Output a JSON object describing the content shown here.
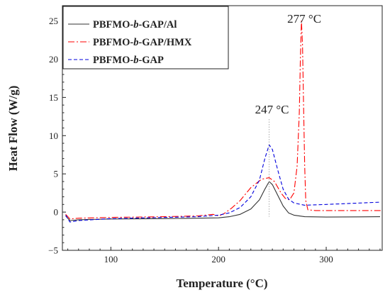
{
  "chart_data": {
    "type": "line",
    "title": "",
    "xlabel": "Temperature (°C)",
    "ylabel": "Heat Flow (W/g)",
    "xlim": [
      55,
      352
    ],
    "ylim": [
      -5,
      27
    ],
    "x_ticks": [
      100,
      200,
      300
    ],
    "y_ticks": [
      -5,
      0,
      5,
      10,
      15,
      20,
      25
    ],
    "grid": false,
    "legend": "top-left",
    "series": [
      {
        "name": "PBFMO-b-GAP/Al",
        "color": "#333333",
        "dash": "solid",
        "points": [
          [
            58,
            -0.5
          ],
          [
            62,
            -1.1
          ],
          [
            70,
            -1.0
          ],
          [
            100,
            -0.9
          ],
          [
            150,
            -0.85
          ],
          [
            180,
            -0.8
          ],
          [
            200,
            -0.75
          ],
          [
            210,
            -0.6
          ],
          [
            220,
            -0.3
          ],
          [
            230,
            0.4
          ],
          [
            238,
            1.6
          ],
          [
            243,
            3.0
          ],
          [
            247,
            4.0
          ],
          [
            250,
            3.6
          ],
          [
            255,
            2.2
          ],
          [
            260,
            0.8
          ],
          [
            265,
            -0.1
          ],
          [
            270,
            -0.4
          ],
          [
            280,
            -0.6
          ],
          [
            300,
            -0.65
          ],
          [
            350,
            -0.6
          ]
        ]
      },
      {
        "name": "PBFMO-b-GAP/HMX",
        "color": "#ff0000",
        "dash": "dashdot",
        "points": [
          [
            58,
            -0.3
          ],
          [
            62,
            -0.9
          ],
          [
            70,
            -0.8
          ],
          [
            100,
            -0.7
          ],
          [
            150,
            -0.6
          ],
          [
            180,
            -0.5
          ],
          [
            195,
            -0.3
          ],
          [
            200,
            -0.5
          ],
          [
            205,
            -0.2
          ],
          [
            212,
            0.5
          ],
          [
            220,
            1.5
          ],
          [
            230,
            3.2
          ],
          [
            240,
            4.3
          ],
          [
            247,
            4.5
          ],
          [
            252,
            4.0
          ],
          [
            258,
            2.5
          ],
          [
            262,
            1.8
          ],
          [
            266,
            1.6
          ],
          [
            270,
            2.5
          ],
          [
            273,
            6.0
          ],
          [
            275,
            13.0
          ],
          [
            276,
            20.0
          ],
          [
            277,
            25.0
          ],
          [
            278,
            22.0
          ],
          [
            279,
            14.0
          ],
          [
            280,
            6.0
          ],
          [
            281,
            1.5
          ],
          [
            283,
            0.3
          ],
          [
            290,
            0.2
          ],
          [
            320,
            0.2
          ],
          [
            352,
            0.2
          ]
        ]
      },
      {
        "name": "PBFMO-b-GAP",
        "color": "#0000dd",
        "dash": "dash",
        "points": [
          [
            58,
            -0.4
          ],
          [
            62,
            -1.3
          ],
          [
            70,
            -1.1
          ],
          [
            100,
            -0.85
          ],
          [
            150,
            -0.7
          ],
          [
            180,
            -0.6
          ],
          [
            200,
            -0.4
          ],
          [
            210,
            -0.1
          ],
          [
            220,
            0.6
          ],
          [
            230,
            2.0
          ],
          [
            238,
            4.2
          ],
          [
            243,
            7.0
          ],
          [
            247,
            8.8
          ],
          [
            250,
            8.2
          ],
          [
            255,
            5.5
          ],
          [
            260,
            3.0
          ],
          [
            265,
            1.7
          ],
          [
            270,
            1.2
          ],
          [
            280,
            0.9
          ],
          [
            300,
            1.0
          ],
          [
            350,
            1.3
          ]
        ]
      }
    ],
    "annotations": [
      {
        "text": "277 °C",
        "x": 277,
        "y": 25
      },
      {
        "text": "247 °C",
        "x": 247,
        "y": 9
      }
    ]
  }
}
